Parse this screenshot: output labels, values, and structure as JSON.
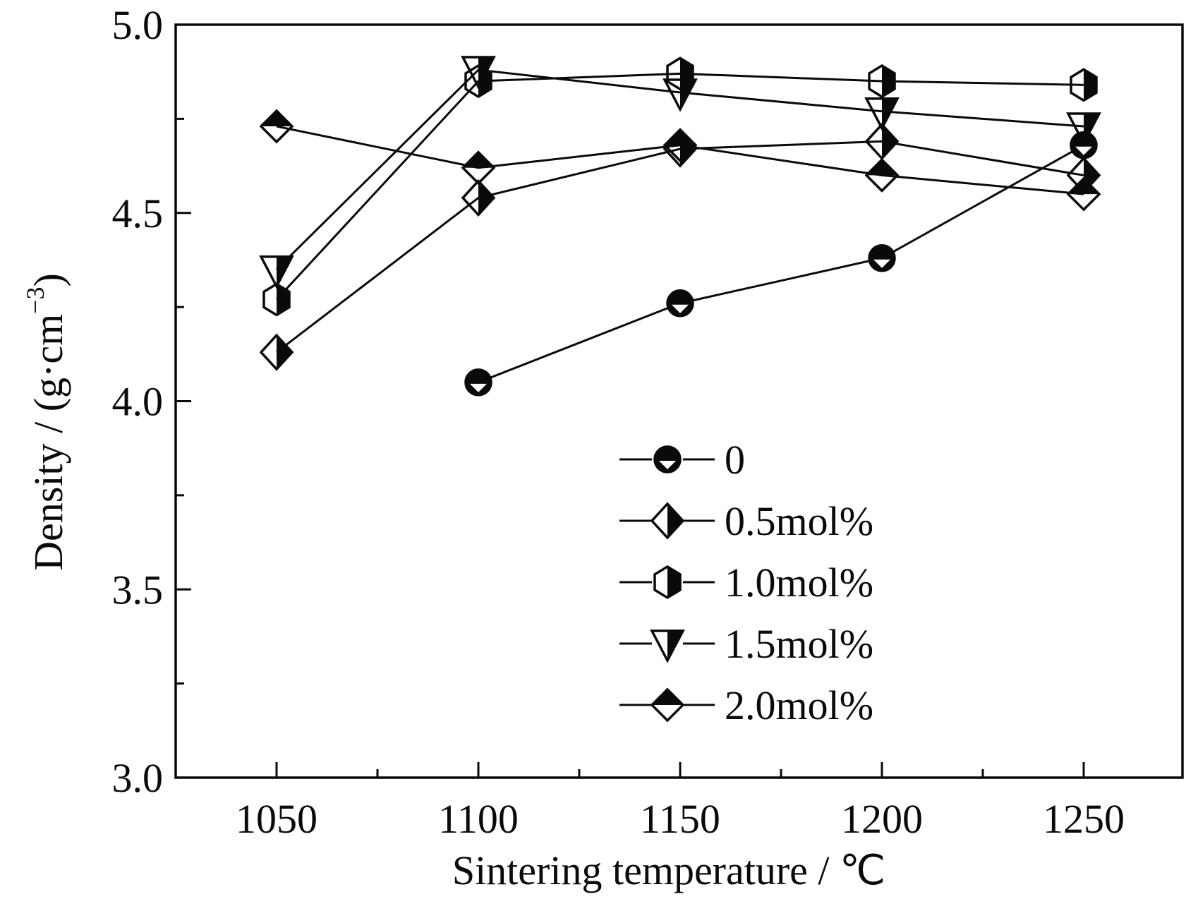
{
  "chart_data": {
    "type": "line",
    "title": "",
    "xlabel": "Sintering temperature / ℃",
    "ylabel_main": "Density / (g·cm",
    "ylabel_sup": "−3",
    "ylabel_close": ")",
    "xlim": [
      1025,
      1275
    ],
    "ylim": [
      3.0,
      5.0
    ],
    "x_ticks": [
      1050,
      1100,
      1150,
      1200,
      1250
    ],
    "x_tick_labels": [
      "1050",
      "1100",
      "1150",
      "1200",
      "1250"
    ],
    "x_minor_ticks": [
      1075,
      1125,
      1175,
      1225
    ],
    "y_ticks": [
      3.0,
      3.5,
      4.0,
      4.5,
      5.0
    ],
    "y_tick_labels": [
      "3.0",
      "3.5",
      "4.0",
      "4.5",
      "5.0"
    ],
    "y_minor_ticks": [
      3.25,
      3.75,
      4.25,
      4.75
    ],
    "grid": false,
    "legend_position": "center",
    "color": "#0a0a0a",
    "series": [
      {
        "name": "0",
        "marker": "circle-half",
        "x": [
          1100,
          1150,
          1200,
          1250
        ],
        "values": [
          4.05,
          4.26,
          4.38,
          4.68
        ]
      },
      {
        "name": "0.5mol%",
        "marker": "diamond-right-half",
        "x": [
          1050,
          1100,
          1150,
          1200,
          1250
        ],
        "values": [
          4.13,
          4.54,
          4.67,
          4.69,
          4.6
        ]
      },
      {
        "name": "1.0mol%",
        "marker": "hexagon-right-half",
        "x": [
          1050,
          1100,
          1150,
          1200,
          1250
        ],
        "values": [
          4.27,
          4.85,
          4.87,
          4.85,
          4.84
        ]
      },
      {
        "name": "1.5mol%",
        "marker": "triangle-down-right-half",
        "x": [
          1050,
          1100,
          1150,
          1200,
          1250
        ],
        "values": [
          4.35,
          4.88,
          4.82,
          4.77,
          4.73
        ]
      },
      {
        "name": "2.0mol%",
        "marker": "diamond-top-half",
        "x": [
          1050,
          1100,
          1150,
          1200,
          1250
        ],
        "values": [
          4.73,
          4.62,
          4.68,
          4.6,
          4.55
        ]
      }
    ]
  }
}
